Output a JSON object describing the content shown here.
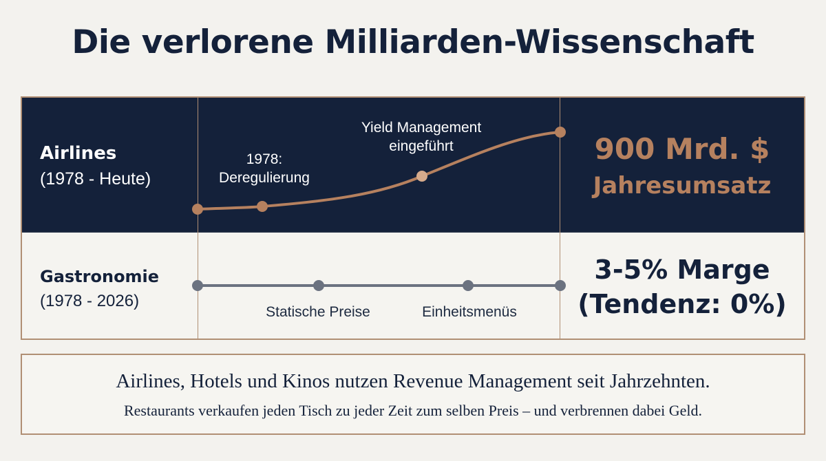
{
  "title": "Die verlorene Milliarden-Wissenschaft",
  "airlines": {
    "label": "Airlines",
    "period": "(1978 - Heute)",
    "annotation_1": "1978:\nDeregulierung",
    "annotation_2": "Yield Management\neingeführt",
    "stat_line1": "900 Mrd. $",
    "stat_line2": "Jahresumsatz"
  },
  "gastro": {
    "label": "Gastronomie",
    "period": "(1978 - 2026)",
    "annotation_1": "Statische Preise",
    "annotation_2": "Einheitsmenüs",
    "stat_line1": "3-5% Marge",
    "stat_line2": "(Tendenz: 0%)"
  },
  "note": {
    "line1": "Airlines, Hotels und Kinos nutzen Revenue Management seit Jahrzehnten.",
    "line2": "Restaurants verkaufen jeden Tisch zu jeder Zeit zum selben Preis – und verbrennen dabei Geld."
  },
  "colors": {
    "navy": "#14213a",
    "copper": "#b6815f",
    "grey_line": "#6b7280",
    "background": "#f3f2ee"
  }
}
